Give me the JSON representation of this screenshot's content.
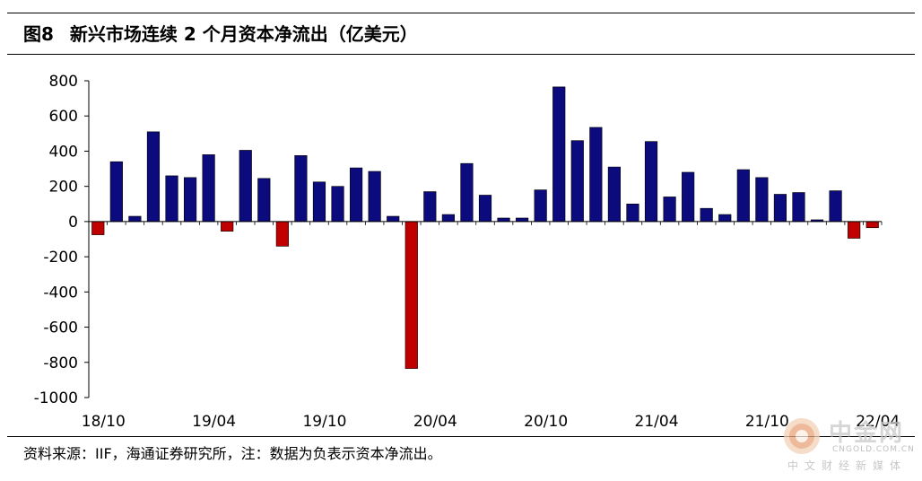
{
  "header": {
    "figure_label": "图8",
    "title": "新兴市场连续 2 个月资本净流出（亿美元）"
  },
  "source_note": "资料来源：IIF，海通证券研究所，注：数据为负表示资本净流出。",
  "watermark": {
    "brand": "中金网",
    "domain": "CNGOLD.COM.CN",
    "subtitle": "中文财经新媒体"
  },
  "chart_data": {
    "type": "bar",
    "title": "",
    "xlabel": "",
    "ylabel": "",
    "ylim": [
      -1000,
      800
    ],
    "yticks": [
      -1000,
      -800,
      -600,
      -400,
      -200,
      0,
      200,
      400,
      600,
      800
    ],
    "ytick_labels": [
      "-1000",
      "-800",
      "-600",
      "-400",
      "-200",
      "0",
      "200",
      "400",
      "600",
      "800"
    ],
    "x_tick_labels": [
      {
        "label": "18/10",
        "index": 0
      },
      {
        "label": "19/04",
        "index": 6
      },
      {
        "label": "19/10",
        "index": 12
      },
      {
        "label": "20/04",
        "index": 18
      },
      {
        "label": "20/10",
        "index": 24
      },
      {
        "label": "21/04",
        "index": 30
      },
      {
        "label": "21/10",
        "index": 36
      },
      {
        "label": "22/04",
        "index": 42
      }
    ],
    "categories": [
      "2018-10",
      "2018-11",
      "2018-12",
      "2019-01",
      "2019-02",
      "2019-03",
      "2019-04",
      "2019-05",
      "2019-06",
      "2019-07",
      "2019-08",
      "2019-09",
      "2019-10",
      "2019-11",
      "2019-12",
      "2020-01",
      "2020-02",
      "2020-03",
      "2020-04",
      "2020-05",
      "2020-06",
      "2020-07",
      "2020-08",
      "2020-09",
      "2020-10",
      "2020-11",
      "2020-12",
      "2021-01",
      "2021-02",
      "2021-03",
      "2021-04",
      "2021-05",
      "2021-06",
      "2021-07",
      "2021-08",
      "2021-09",
      "2021-10",
      "2021-11",
      "2021-12",
      "2022-01",
      "2022-02",
      "2022-03",
      "2022-04"
    ],
    "values": [
      -75,
      340,
      30,
      510,
      260,
      250,
      380,
      -55,
      405,
      245,
      -140,
      375,
      225,
      200,
      305,
      285,
      30,
      -835,
      170,
      40,
      330,
      150,
      20,
      20,
      180,
      765,
      460,
      535,
      310,
      100,
      455,
      140,
      280,
      75,
      40,
      295,
      250,
      155,
      165,
      10,
      175,
      -95,
      -35
    ],
    "colors": {
      "positive": "#0b0b7d",
      "negative": "#c00000"
    },
    "grid": false,
    "legend": "none"
  }
}
